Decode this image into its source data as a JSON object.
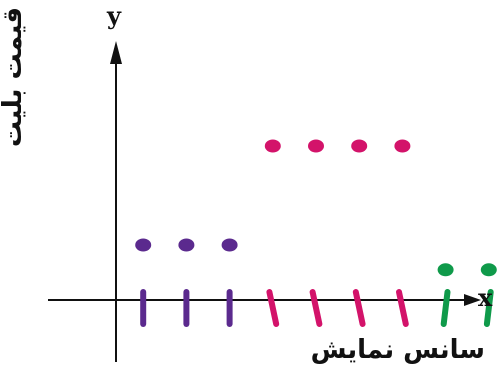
{
  "chart_data": {
    "type": "scatter",
    "ylabel": "قیمت بلیت",
    "xlabel": "سانس نمایش",
    "x_axis_letter": "x",
    "y_axis_letter": "y",
    "grid": false,
    "series": [
      {
        "color": "#5b2a8e",
        "points": [
          [
            1,
            1
          ],
          [
            2,
            1
          ],
          [
            3,
            1
          ]
        ]
      },
      {
        "color": "#d3136a",
        "points": [
          [
            4,
            2.8
          ],
          [
            5,
            2.8
          ],
          [
            6,
            2.8
          ],
          [
            7,
            2.8
          ]
        ]
      },
      {
        "color": "#0f9a4a",
        "points": [
          [
            8,
            0.55
          ],
          [
            9,
            0.55
          ]
        ]
      }
    ]
  }
}
